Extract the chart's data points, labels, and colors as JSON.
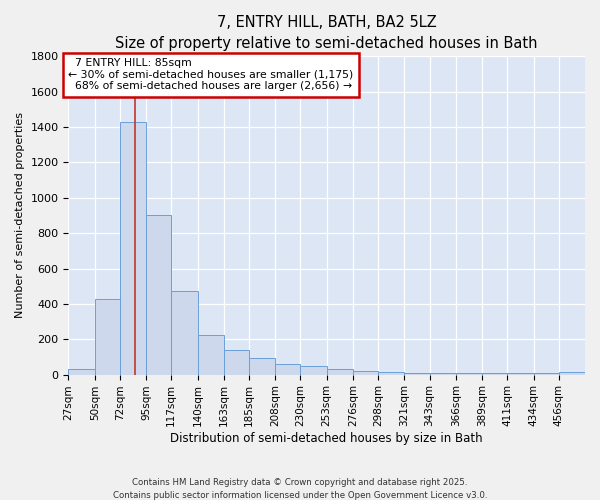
{
  "title": "7, ENTRY HILL, BATH, BA2 5LZ",
  "subtitle": "Size of property relative to semi-detached houses in Bath",
  "xlabel": "Distribution of semi-detached houses by size in Bath",
  "ylabel": "Number of semi-detached properties",
  "bin_edges": [
    27,
    50,
    72,
    95,
    117,
    140,
    163,
    185,
    208,
    230,
    253,
    276,
    298,
    321,
    343,
    366,
    389,
    411,
    434,
    456,
    479
  ],
  "bar_heights": [
    30,
    430,
    1430,
    900,
    470,
    225,
    140,
    95,
    60,
    48,
    32,
    20,
    15,
    8,
    8,
    8,
    8,
    8,
    8,
    15
  ],
  "bar_color": "#cdd8ec",
  "bar_edge_color": "#6a9fd8",
  "property_size": 85,
  "vline_color": "#c0392b",
  "annotation_title": "7 ENTRY HILL: 85sqm",
  "annotation_smaller_pct": "30%",
  "annotation_smaller_n": "1,175",
  "annotation_larger_pct": "68%",
  "annotation_larger_n": "2,656",
  "annotation_box_color": "#ffffff",
  "annotation_box_edge": "#cc0000",
  "ylim": [
    0,
    1800
  ],
  "background_color": "#dce6f5",
  "grid_color": "#ffffff",
  "fig_bg_color": "#f0f0f0",
  "footer1": "Contains HM Land Registry data © Crown copyright and database right 2025.",
  "footer2": "Contains public sector information licensed under the Open Government Licence v3.0."
}
